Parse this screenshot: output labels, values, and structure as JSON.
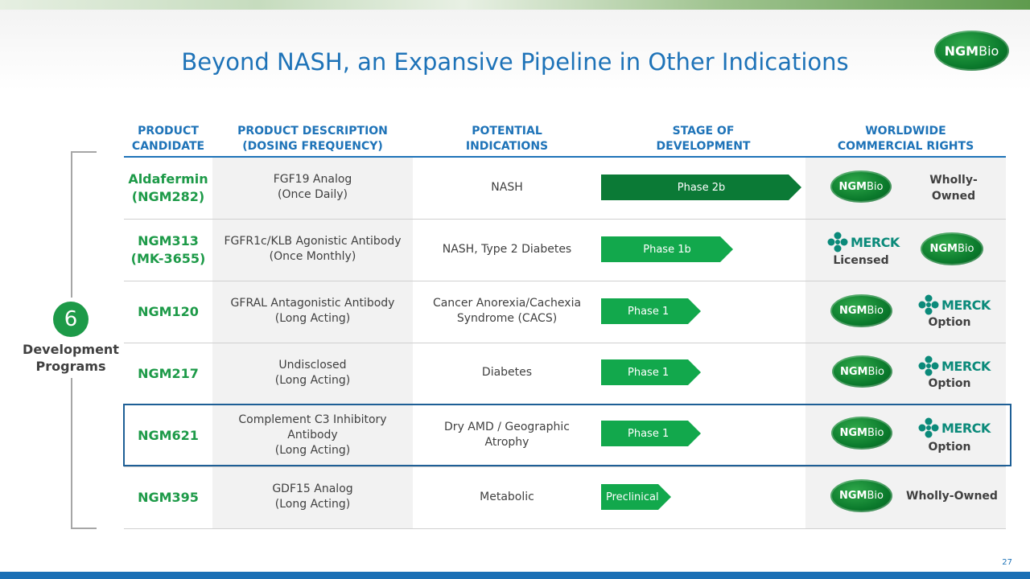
{
  "slide": {
    "title": "Beyond NASH, an Expansive Pipeline in Other Indications",
    "page_number": "27"
  },
  "logo": {
    "ngm": "NGM",
    "bio": "Bio"
  },
  "merck_label": "MERCK",
  "columns": {
    "candidate": "PRODUCT\nCANDIDATE",
    "description": "PRODUCT DESCRIPTION\n(DOSING FREQUENCY)",
    "indications": "POTENTIAL\nINDICATIONS",
    "stage": "STAGE OF\nDEVELOPMENT",
    "rights": "WORLDWIDE\nCOMMERCIAL RIGHTS"
  },
  "programs": {
    "count": "6",
    "label": "Development\nPrograms"
  },
  "rows": [
    {
      "candidate": "Aldafermin\n(NGM282)",
      "description": "FGF19 Analog\n(Once Daily)",
      "indication": "NASH",
      "phase": "Phase 2b",
      "phase_color": "#0b7a36",
      "rights_text": "Wholly-\nOwned"
    },
    {
      "candidate": "NGM313\n(MK-3655)",
      "description": "FGFR1c/KLB Agonistic Antibody\n(Once Monthly)",
      "indication": "NASH, Type 2 Diabetes",
      "phase": "Phase 1b",
      "phase_color": "#12a84c",
      "rights_text": "Licensed"
    },
    {
      "candidate": "NGM120",
      "description": "GFRAL Antagonistic Antibody\n(Long Acting)",
      "indication": "Cancer Anorexia/Cachexia\nSyndrome (CACS)",
      "phase": "Phase 1",
      "phase_color": "#12a84c",
      "rights_text": "Option"
    },
    {
      "candidate": "NGM217",
      "description": "Undisclosed\n(Long Acting)",
      "indication": "Diabetes",
      "phase": "Phase 1",
      "phase_color": "#12a84c",
      "rights_text": "Option"
    },
    {
      "candidate": "NGM621",
      "description": "Complement C3 Inhibitory\nAntibody\n(Long Acting)",
      "indication": "Dry AMD / Geographic\nAtrophy",
      "phase": "Phase 1",
      "phase_color": "#12a84c",
      "rights_text": "Option"
    },
    {
      "candidate": "NGM395",
      "description": "GDF15 Analog\n(Long Acting)",
      "indication": "Metabolic",
      "phase": "Preclinical",
      "phase_color": "#12a84c",
      "rights_text": "Wholly-Owned"
    }
  ]
}
